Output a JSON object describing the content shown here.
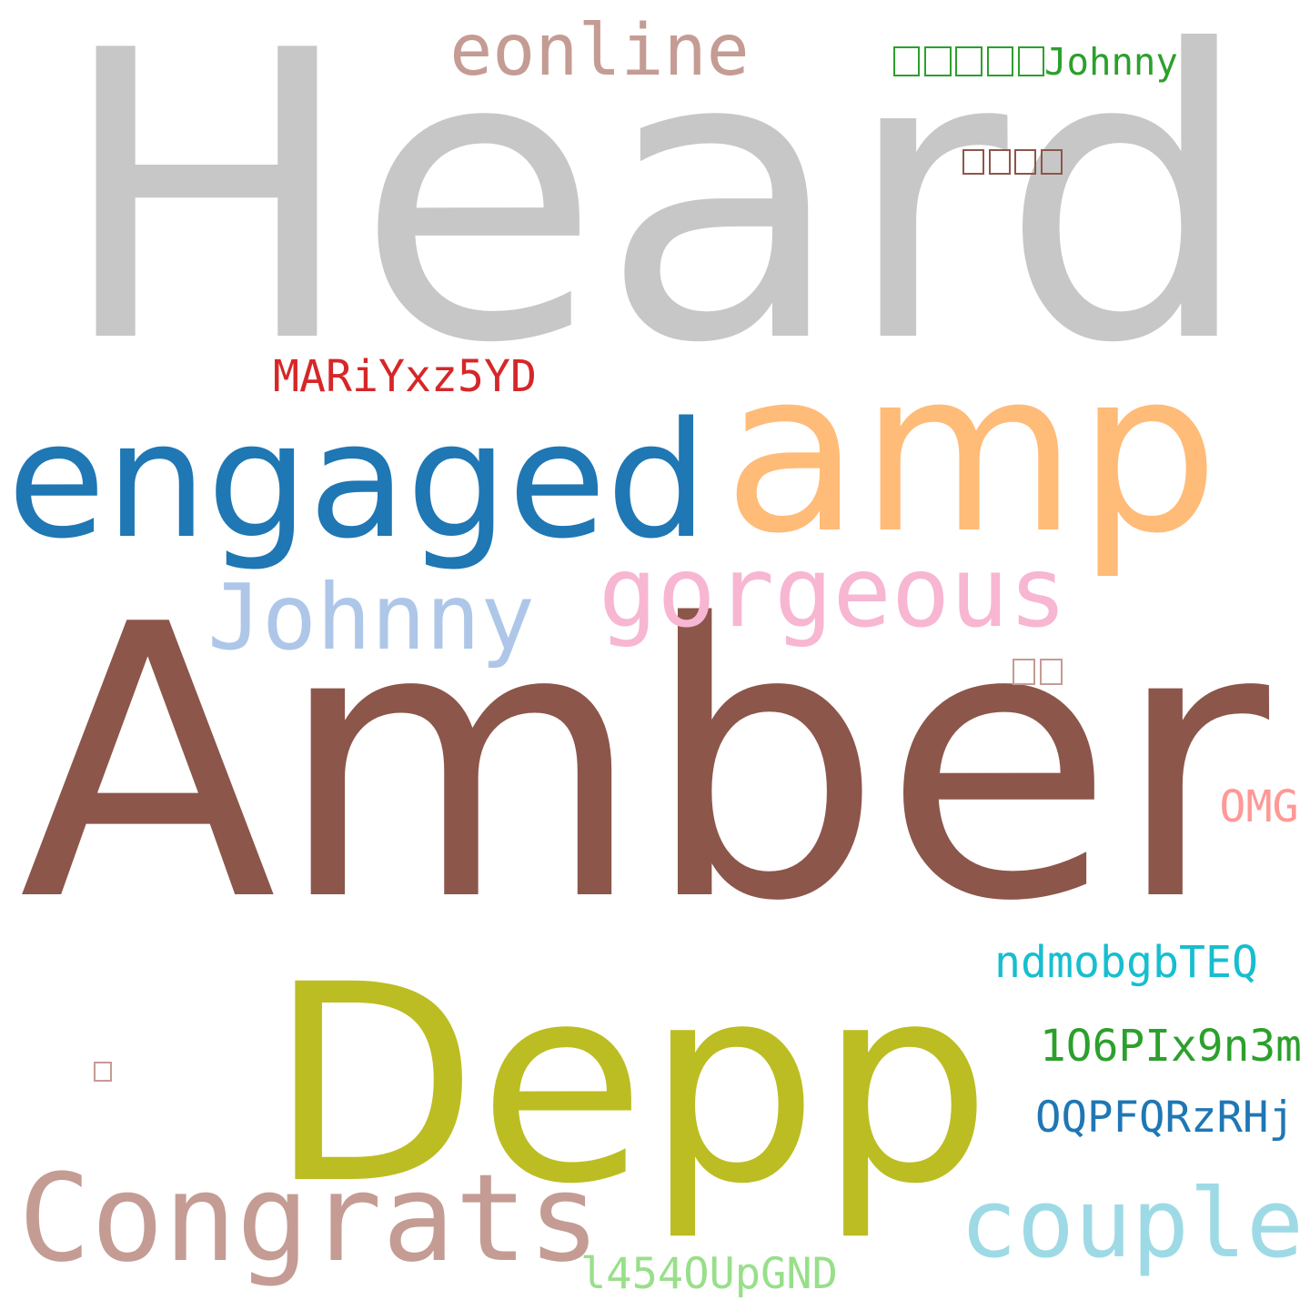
{
  "cloud": {
    "words": [
      {
        "id": "heard",
        "text": "Heard",
        "color": "#c7c7c7"
      },
      {
        "id": "amber",
        "text": "Amber",
        "color": "#8c564b"
      },
      {
        "id": "depp",
        "text": "Depp",
        "color": "#bcbd22"
      },
      {
        "id": "amp",
        "text": "amp",
        "color": "#ffbb78"
      },
      {
        "id": "engaged",
        "text": "engaged",
        "color": "#1f77b4"
      },
      {
        "id": "gorgeous",
        "text": "gorgeous",
        "color": "#f7b6d2"
      },
      {
        "id": "johnny",
        "text": "Johnny",
        "color": "#aec7e8"
      },
      {
        "id": "congrats",
        "text": "Congrats",
        "color": "#c49c94"
      },
      {
        "id": "couple",
        "text": "couple",
        "color": "#9edae5"
      },
      {
        "id": "eonline",
        "text": "eonline",
        "color": "#c49c94"
      },
      {
        "id": "cjk-johnny",
        "text": "Johnny",
        "boxes": 5,
        "color": "#2ca02c"
      },
      {
        "id": "cjk-four",
        "boxes": 4,
        "color": "#8c564b"
      },
      {
        "id": "mariy",
        "text": "MARiYxz5YD",
        "color": "#d62728"
      },
      {
        "id": "cjk-two",
        "boxes": 2,
        "color": "#c49c94"
      },
      {
        "id": "omg",
        "text": "OMG",
        "color": "#ff9896"
      },
      {
        "id": "ndmob",
        "text": "ndmobgbTEQ",
        "color": "#17becf"
      },
      {
        "id": "io6pi",
        "text": "1O6PIx9n3m",
        "color": "#2ca02c"
      },
      {
        "id": "oqpf",
        "text": "OQPFQRzRHj",
        "color": "#1f77b4"
      },
      {
        "id": "cjk-one",
        "boxes": 1,
        "color": "#c49c94"
      },
      {
        "id": "l454",
        "text": "l454OUpGND",
        "color": "#98df8a"
      }
    ]
  }
}
